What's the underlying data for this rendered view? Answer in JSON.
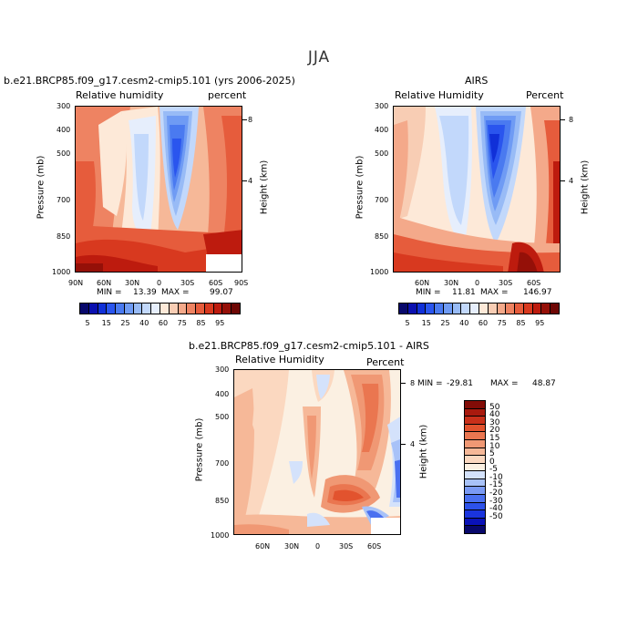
{
  "page_title": "JJA",
  "colors": {
    "rh": [
      "#08086b",
      "#0a10b0",
      "#1030d8",
      "#2a55ee",
      "#4a7af0",
      "#6f9bf4",
      "#98bbf6",
      "#c2d8fb",
      "#e6eefc",
      "#fde9d8",
      "#f8cdb4",
      "#f4a98a",
      "#ee8362",
      "#e65c3c",
      "#d8391f",
      "#bd1b0e",
      "#951008",
      "#6e0704"
    ],
    "diff": [
      "#08086b",
      "#0a12b8",
      "#1a34de",
      "#2d52ea",
      "#4a70f0",
      "#7a9af4",
      "#a8c2f8",
      "#d4e2fb",
      "#fbf0e2",
      "#fbd8c0",
      "#f6b898",
      "#f09874",
      "#ea7650",
      "#e2532e",
      "#c9301a",
      "#a91a0e",
      "#820c07"
    ]
  },
  "chart_data": [
    {
      "type": "heatmap",
      "title": "b.e21.BRCP85.f09_g17.cesm2-cmip5.101 (yrs 2006-2025)",
      "left_label": "Relative humidity",
      "right_label": "percent",
      "min_label": "MIN =",
      "min": "13.39",
      "max_label": "MAX =",
      "max": "99.07",
      "ylabel": "Pressure (mb)",
      "ylabel_right": "Height (km)",
      "yticks": [
        "300",
        "400",
        "500",
        "700",
        "850",
        "1000"
      ],
      "yticks_right": [
        "8",
        "4"
      ],
      "xticks": [
        "90N",
        "60N",
        "30N",
        "0",
        "30S",
        "60S",
        "90S"
      ],
      "colorbar_labels": [
        "5",
        "15",
        "25",
        "40",
        "60",
        "75",
        "85",
        "95"
      ]
    },
    {
      "type": "heatmap",
      "title": "AIRS",
      "left_label": "Relative Humidity",
      "right_label": "Percent",
      "min_label": "MIN =",
      "min": "11.81",
      "max_label": "MAX =",
      "max": "146.97",
      "ylabel": "Pressure (mb)",
      "ylabel_right": "Height (km)",
      "yticks": [
        "300",
        "400",
        "500",
        "700",
        "850",
        "1000"
      ],
      "yticks_right": [
        "8",
        "4"
      ],
      "xticks": [
        "60N",
        "30N",
        "0",
        "30S",
        "60S"
      ],
      "colorbar_labels": [
        "5",
        "15",
        "25",
        "40",
        "60",
        "75",
        "85",
        "95"
      ]
    },
    {
      "type": "heatmap",
      "title": "b.e21.BRCP85.f09_g17.cesm2-cmip5.101 - AIRS",
      "left_label": "Relative Humidity",
      "right_label": "Percent",
      "min_label": "MIN =",
      "min": "-29.81",
      "max_label": "MAX =",
      "max": "48.87",
      "ylabel": "Pressure (mb)",
      "ylabel_right": "Height (km)",
      "yticks": [
        "300",
        "400",
        "500",
        "700",
        "850",
        "1000"
      ],
      "yticks_right": [
        "8",
        "4"
      ],
      "xticks": [
        "60N",
        "30N",
        "0",
        "30S",
        "60S"
      ],
      "colorbar_labels": [
        "50",
        "40",
        "30",
        "20",
        "15",
        "10",
        "5",
        "0",
        "-5",
        "-10",
        "-15",
        "-20",
        "-30",
        "-40",
        "-50"
      ]
    }
  ]
}
